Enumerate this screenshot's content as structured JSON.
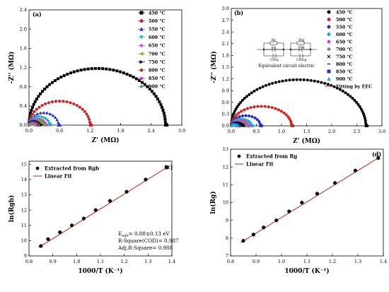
{
  "chart_data": [
    {
      "panel": "(a)",
      "type": "scatter",
      "xlabel": "Z' (MΩ)",
      "ylabel": "-Z'' (MΩ)",
      "xlim": [
        0,
        3.0
      ],
      "ylim": [
        0,
        2.4
      ],
      "xticks": [
        "0.0",
        "0.6",
        "1.2",
        "1.8",
        "2.4",
        "3.0"
      ],
      "yticks": [
        "0.0",
        "0.4",
        "0.8",
        "1.2",
        "1.6",
        "2.0",
        "2.4"
      ],
      "legend_position": "top-right",
      "series": [
        {
          "name": "450 °C",
          "color": "#000000",
          "marker": "square",
          "R": 2.68,
          "h": 1.18
        },
        {
          "name": "500 °C",
          "color": "#cc2222",
          "marker": "circle",
          "R": 1.2,
          "h": 0.5
        },
        {
          "name": "550 °C",
          "color": "#2233cc",
          "marker": "triangle",
          "R": 0.58,
          "h": 0.26
        },
        {
          "name": "600 °C",
          "color": "#22aacc",
          "marker": "triangle-down",
          "R": 0.4,
          "h": 0.17
        },
        {
          "name": "650 °C",
          "color": "#cc44cc",
          "marker": "diamond",
          "R": 0.33,
          "h": 0.13
        },
        {
          "name": "700 °C",
          "color": "#66aa22",
          "marker": "triangle-left",
          "R": 0.27,
          "h": 0.1
        },
        {
          "name": "750 °C",
          "color": "#00008b",
          "marker": "triangle-right",
          "R": 0.22,
          "h": 0.08
        },
        {
          "name": "800 °C",
          "color": "#8b4513",
          "marker": "hexagon",
          "R": 0.17,
          "h": 0.06
        },
        {
          "name": "850 °C",
          "color": "#aa22aa",
          "marker": "star",
          "R": 0.13,
          "h": 0.04
        },
        {
          "name": "900 °C",
          "color": "#888888",
          "marker": "pentagon",
          "R": 0.1,
          "h": 0.03
        }
      ]
    },
    {
      "panel": "(b)",
      "type": "scatter",
      "xlabel": "Z' (MΩ)",
      "ylabel": "-Z'' (MΩ)",
      "xlim": [
        0,
        3.0
      ],
      "ylim": [
        0,
        3.0
      ],
      "xticks": [
        "0.0",
        "0.5",
        "1.0",
        "1.5",
        "2.0",
        "2.5",
        "3.0"
      ],
      "yticks": [
        "0.0",
        "0.3",
        "0.6",
        "0.9",
        "1.2",
        "1.5",
        "1.8",
        "2.1",
        "2.4",
        "2.7",
        "3.0"
      ],
      "legend_position": "top-right",
      "fit_label": "Fitting by EEC",
      "inset": {
        "caption": "Equivalent circuit electric",
        "labels": [
          "Rg",
          "Cg",
          "CPEg",
          "Rbg",
          "Cbg",
          "CPEbg"
        ]
      },
      "series": [
        {
          "name": "450 °C",
          "color": "#000000",
          "marker": "circle",
          "R": 2.68,
          "h": 1.18
        },
        {
          "name": "500 °C",
          "color": "#cc2222",
          "marker": "circle",
          "R": 1.2,
          "h": 0.5
        },
        {
          "name": "550 °C",
          "color": "#2233cc",
          "marker": "circle",
          "R": 0.58,
          "h": 0.26
        },
        {
          "name": "600 °C",
          "color": "#22aacc",
          "marker": "circle",
          "R": 0.4,
          "h": 0.17
        },
        {
          "name": "650 °C",
          "color": "#cc44cc",
          "marker": "circle",
          "R": 0.33,
          "h": 0.13
        },
        {
          "name": "700 °C",
          "color": "#888888",
          "marker": "circle",
          "R": 0.27,
          "h": 0.1
        },
        {
          "name": "750 °C",
          "color": "#000000",
          "marker": "x",
          "R": 0.22,
          "h": 0.08
        },
        {
          "name": "800 °C",
          "color": "#000000",
          "marker": "dash",
          "R": 0.17,
          "h": 0.06
        },
        {
          "name": "850 °C",
          "color": "#2233cc",
          "marker": "square",
          "R": 0.13,
          "h": 0.04
        },
        {
          "name": "900 °C",
          "color": "#22aacc",
          "marker": "triangle",
          "R": 0.1,
          "h": 0.03
        }
      ]
    },
    {
      "panel": "(c)",
      "type": "scatter",
      "xlabel": "1000/T (K⁻¹)",
      "ylabel": "ln(Rgb)",
      "xlim": [
        0.8,
        1.4
      ],
      "ylim": [
        9,
        15.2
      ],
      "xticks": [
        "0.8",
        "0.9",
        "1.0",
        "1.1",
        "1.2",
        "1.3",
        "1.4"
      ],
      "yticks": [
        "9",
        "10",
        "11",
        "12",
        "13",
        "14",
        "15"
      ],
      "legend_position": "top-left",
      "legend": [
        "Extracted from Rgb",
        "Linear Fit"
      ],
      "annotations": [
        "E_agb= 0.88±0.13 eV",
        "R-Square(COD)= 0.987",
        "Adj.R-Square= 0.988"
      ],
      "x": [
        0.85,
        0.88,
        0.93,
        0.98,
        1.03,
        1.08,
        1.14,
        1.21,
        1.29,
        1.38
      ],
      "y": [
        9.65,
        10.1,
        10.55,
        11.0,
        11.45,
        12.0,
        12.6,
        13.2,
        14.0,
        14.8
      ],
      "fit": {
        "x": [
          0.84,
          1.385
        ],
        "y": [
          9.55,
          14.85
        ]
      }
    },
    {
      "panel": "(d)",
      "type": "scatter",
      "xlabel": "1000/T (K⁻¹)",
      "ylabel": "ln(Rg)",
      "xlim": [
        0.8,
        1.4
      ],
      "ylim": [
        7,
        13
      ],
      "xticks": [
        "0.8",
        "0.9",
        "1.0",
        "1.1",
        "1.2",
        "1.3",
        "1.4"
      ],
      "yticks": [
        "7",
        "8",
        "9",
        "10",
        "11",
        "12",
        "13"
      ],
      "legend_position": "top-left",
      "legend": [
        "Extracted from Rg",
        "Linear Fit"
      ],
      "x": [
        0.85,
        0.89,
        0.93,
        0.98,
        1.03,
        1.08,
        1.14,
        1.21,
        1.29,
        1.38
      ],
      "y": [
        7.85,
        8.2,
        8.6,
        9.0,
        9.5,
        10.0,
        10.5,
        11.1,
        11.8,
        12.5
      ],
      "fit": {
        "x": [
          0.84,
          1.385
        ],
        "y": [
          7.75,
          12.55
        ]
      }
    }
  ]
}
